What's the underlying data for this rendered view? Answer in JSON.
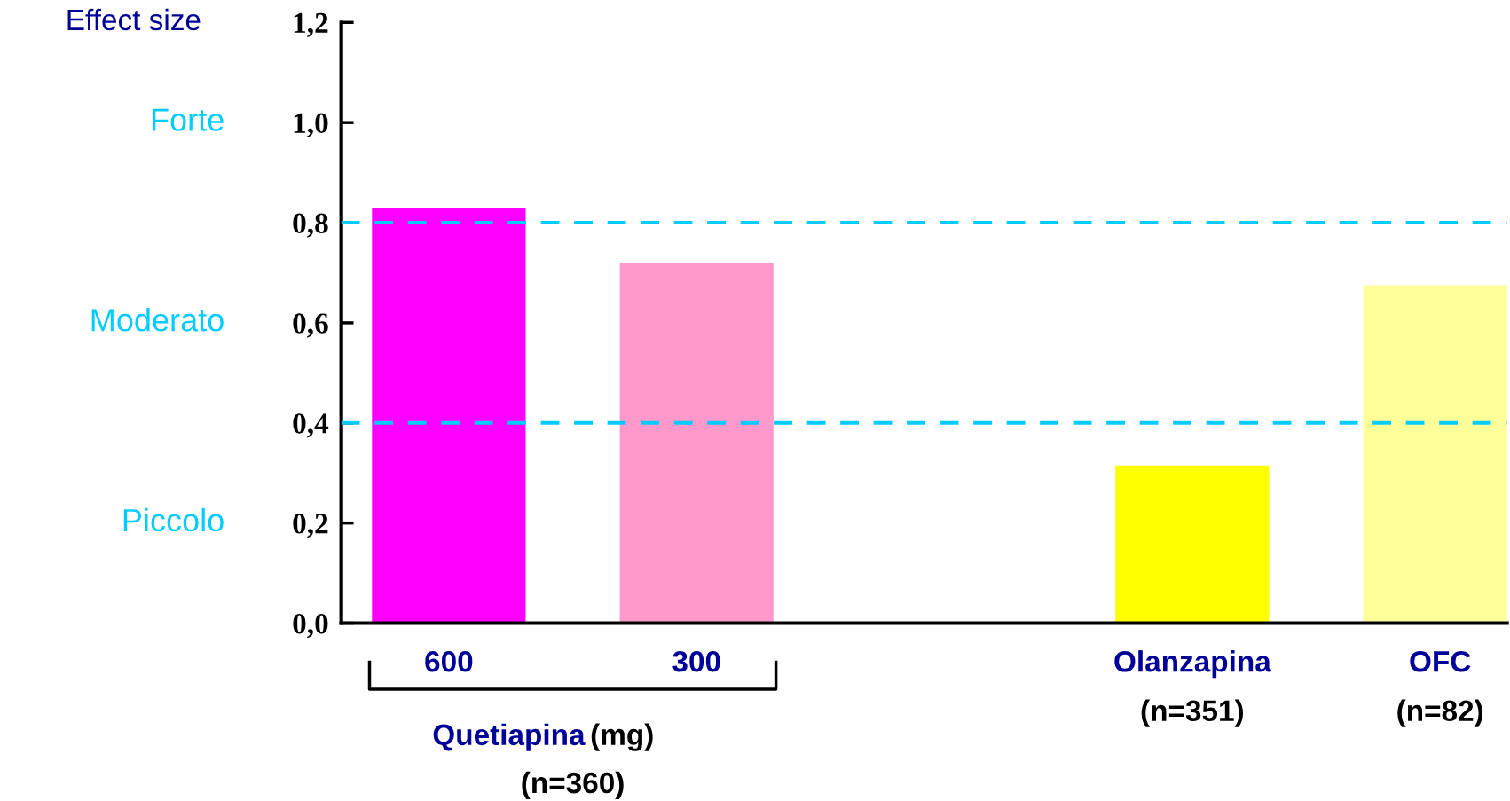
{
  "chart_data": {
    "type": "bar",
    "ylabel": "Effect size",
    "categories": [
      "600",
      "300",
      null,
      "Olanzapina",
      "OFC"
    ],
    "values": [
      0.83,
      0.72,
      null,
      0.315,
      0.675
    ],
    "colors": [
      "#ff00ff",
      "#ff99cc",
      "#ffffff",
      "#ffff00",
      "#ffff99"
    ],
    "ylim": [
      0,
      1.2
    ],
    "yticks": [
      {
        "value": 0,
        "label": "0,0"
      },
      {
        "value": 0.2,
        "label": "0,2"
      },
      {
        "value": 0.4,
        "label": "0,4"
      },
      {
        "value": 0.6,
        "label": "0,6"
      },
      {
        "value": 0.8,
        "label": "0,8"
      },
      {
        "value": 1.0,
        "label": "1,0"
      },
      {
        "value": 1.2,
        "label": "1,2"
      }
    ],
    "ref_lines": [
      {
        "axis": "y",
        "value": 0.8,
        "color": "#00ccff",
        "line_style": "dashed"
      },
      {
        "axis": "y",
        "value": 0.4,
        "color": "#00ccff",
        "line_style": "dashed"
      }
    ],
    "annotations": [
      "Forte",
      "Moderato",
      "Piccolo",
      "Quetiapina",
      "(mg)",
      "(n=360)",
      "(n=351)",
      "(n=82)"
    ],
    "grid": false,
    "legend": false
  }
}
